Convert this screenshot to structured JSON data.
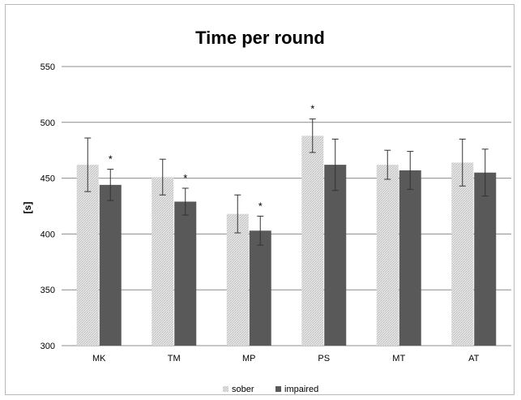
{
  "chart_data": {
    "type": "bar",
    "title": "Time per round",
    "ylabel": "[s]",
    "xlabel": "",
    "categories": [
      "MK",
      "TM",
      "MP",
      "PS",
      "MT",
      "AT"
    ],
    "ylim": [
      300,
      550
    ],
    "yticks": [
      300,
      350,
      400,
      450,
      500,
      550
    ],
    "grid": true,
    "legend_position": "bottom",
    "series": [
      {
        "name": "sober",
        "color": "#d9d9d9",
        "pattern": "hatched",
        "values": [
          462,
          451,
          418,
          488,
          462,
          464
        ],
        "error": [
          24,
          16,
          17,
          15,
          13,
          21
        ]
      },
      {
        "name": "impaired",
        "color": "#595959",
        "values": [
          444,
          429,
          403,
          462,
          457,
          455
        ],
        "error": [
          14,
          12,
          13,
          23,
          17,
          21
        ]
      }
    ],
    "significance": {
      "marker": "*",
      "marks": [
        {
          "category": "MK",
          "series": "impaired"
        },
        {
          "category": "TM",
          "series": "impaired"
        },
        {
          "category": "MP",
          "series": "impaired"
        },
        {
          "category": "PS",
          "series": "sober"
        }
      ]
    }
  }
}
